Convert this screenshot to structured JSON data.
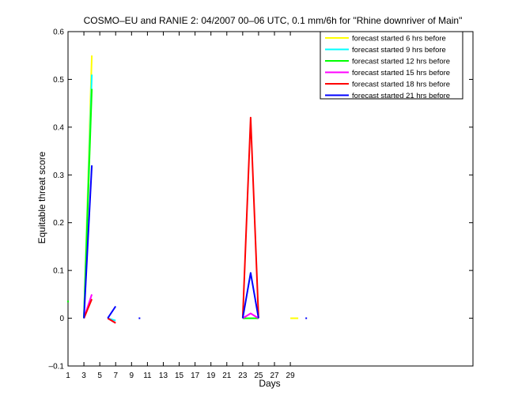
{
  "chart_data": {
    "type": "line",
    "title": "COSMO–EU and RANIE 2: 04/2007 00–06 UTC, 0.1 mm/6h for \"Rhine downriver of Main\"",
    "xlabel": "Days",
    "ylabel": "Equitable threat score",
    "xlim": [
      1,
      52
    ],
    "ylim": [
      -0.1,
      0.6
    ],
    "x_ticks": [
      1,
      3,
      5,
      7,
      9,
      11,
      13,
      15,
      17,
      19,
      21,
      23,
      25,
      27,
      29
    ],
    "x_tick_labels": [
      "1",
      "3",
      "5",
      "7",
      "9",
      "11",
      "13",
      "15",
      "17",
      "19",
      "21",
      "23",
      "25",
      "27",
      "29"
    ],
    "y_ticks": [
      -0.1,
      0,
      0.1,
      0.2,
      0.3,
      0.4,
      0.5,
      0.6
    ],
    "y_tick_labels": [
      "–0.1",
      "0",
      "0.1",
      "0.2",
      "0.3",
      "0.4",
      "0.5",
      "0.6"
    ],
    "grid": false,
    "legend_position": "top-right",
    "series": [
      {
        "name": "forecast started 6 hrs before",
        "color": "#ffff00",
        "segments": [
          [
            [
              3,
              0
            ],
            [
              4,
              0.55
            ]
          ],
          [
            [
              29,
              0
            ],
            [
              30,
              0
            ]
          ]
        ],
        "points": []
      },
      {
        "name": "forecast started 9 hrs before",
        "color": "#00ffff",
        "segments": [
          [
            [
              3,
              0
            ],
            [
              4,
              0.51
            ]
          ],
          [
            [
              6,
              0
            ],
            [
              7,
              -0.005
            ]
          ]
        ],
        "points": []
      },
      {
        "name": "forecast started 12 hrs before",
        "color": "#00ff00",
        "segments": [
          [
            [
              3,
              0
            ],
            [
              4,
              0.48
            ]
          ],
          [
            [
              23,
              0
            ],
            [
              24,
              0
            ],
            [
              25,
              0
            ]
          ]
        ],
        "points": [
          [
            1,
            0.035
          ]
        ]
      },
      {
        "name": "forecast started 15 hrs before",
        "color": "#ff00ff",
        "segments": [
          [
            [
              3,
              0
            ],
            [
              4,
              0.05
            ]
          ],
          [
            [
              6,
              0
            ],
            [
              7,
              -0.01
            ]
          ],
          [
            [
              23,
              0
            ],
            [
              24,
              0.01
            ],
            [
              25,
              0
            ]
          ]
        ],
        "points": []
      },
      {
        "name": "forecast started 18 hrs before",
        "color": "#ff0000",
        "segments": [
          [
            [
              3,
              0
            ],
            [
              4,
              0.04
            ]
          ],
          [
            [
              6,
              0
            ],
            [
              7,
              -0.01
            ]
          ],
          [
            [
              23,
              0
            ],
            [
              24,
              0.42
            ],
            [
              25,
              0
            ]
          ]
        ],
        "points": []
      },
      {
        "name": "forecast started 21 hrs before",
        "color": "#0000ff",
        "segments": [
          [
            [
              3,
              0
            ],
            [
              4,
              0.32
            ]
          ],
          [
            [
              6,
              0
            ],
            [
              7,
              0.025
            ]
          ],
          [
            [
              23,
              0
            ],
            [
              24,
              0.095
            ],
            [
              25,
              0
            ]
          ]
        ],
        "points": [
          [
            10,
            0
          ],
          [
            31,
            0
          ]
        ]
      }
    ]
  }
}
